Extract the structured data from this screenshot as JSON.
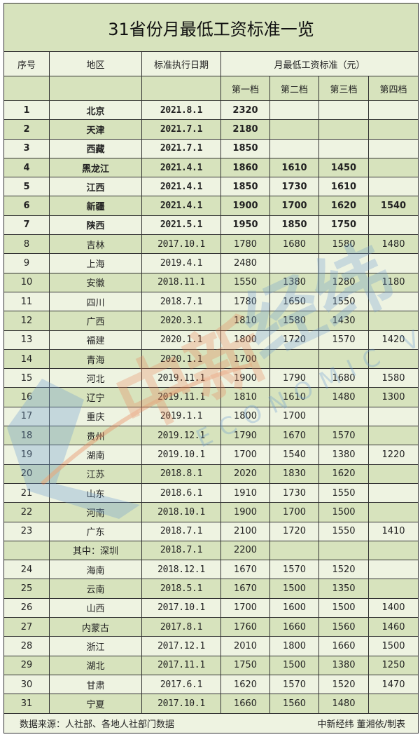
{
  "title": "31省份月最低工资标准一览",
  "headers": {
    "index": "序号",
    "region": "地区",
    "date": "标准执行日期",
    "standard": "月最低工资标准（元）",
    "tiers": [
      "第一档",
      "第二档",
      "第三档",
      "第四档"
    ]
  },
  "rows": [
    {
      "no": "1",
      "region": "北京",
      "date": "2021.8.1",
      "t": [
        "2320",
        "",
        "",
        ""
      ],
      "bold": true
    },
    {
      "no": "2",
      "region": "天津",
      "date": "2021.7.1",
      "t": [
        "2180",
        "",
        "",
        ""
      ],
      "bold": true
    },
    {
      "no": "3",
      "region": "西藏",
      "date": "2021.7.1",
      "t": [
        "1850",
        "",
        "",
        ""
      ],
      "bold": true
    },
    {
      "no": "4",
      "region": "黑龙江",
      "date": "2021.4.1",
      "t": [
        "1860",
        "1610",
        "1450",
        ""
      ],
      "bold": true
    },
    {
      "no": "5",
      "region": "江西",
      "date": "2021.4.1",
      "t": [
        "1850",
        "1730",
        "1610",
        ""
      ],
      "bold": true
    },
    {
      "no": "6",
      "region": "新疆",
      "date": "2021.4.1",
      "t": [
        "1900",
        "1700",
        "1620",
        "1540"
      ],
      "bold": true
    },
    {
      "no": "7",
      "region": "陕西",
      "date": "2021.5.1",
      "t": [
        "1950",
        "1850",
        "1750",
        ""
      ],
      "bold": true
    },
    {
      "no": "8",
      "region": "吉林",
      "date": "2017.10.1",
      "t": [
        "1780",
        "1680",
        "1580",
        "1480"
      ]
    },
    {
      "no": "9",
      "region": "上海",
      "date": "2019.4.1",
      "t": [
        "2480",
        "",
        "",
        ""
      ]
    },
    {
      "no": "10",
      "region": "安徽",
      "date": "2018.11.1",
      "t": [
        "1550",
        "1380",
        "1280",
        "1180"
      ]
    },
    {
      "no": "11",
      "region": "四川",
      "date": "2018.7.1",
      "t": [
        "1780",
        "1650",
        "1550",
        ""
      ]
    },
    {
      "no": "12",
      "region": "广西",
      "date": "2020.3.1",
      "t": [
        "1810",
        "1580",
        "1430",
        ""
      ]
    },
    {
      "no": "13",
      "region": "福建",
      "date": "2020.1.1",
      "t": [
        "1800",
        "1720",
        "1570",
        "1420"
      ]
    },
    {
      "no": "14",
      "region": "青海",
      "date": "2020.1.1",
      "t": [
        "1700",
        "",
        "",
        ""
      ]
    },
    {
      "no": "15",
      "region": "河北",
      "date": "2019.11.1",
      "t": [
        "1900",
        "1790",
        "1680",
        "1580"
      ]
    },
    {
      "no": "16",
      "region": "辽宁",
      "date": "2019.11.1",
      "t": [
        "1810",
        "1610",
        "1480",
        "1300"
      ]
    },
    {
      "no": "17",
      "region": "重庆",
      "date": "2019.1.1",
      "t": [
        "1800",
        "1700",
        "",
        ""
      ]
    },
    {
      "no": "18",
      "region": "贵州",
      "date": "2019.12.1",
      "t": [
        "1790",
        "1670",
        "1570",
        ""
      ]
    },
    {
      "no": "19",
      "region": "湖南",
      "date": "2019.10.1",
      "t": [
        "1700",
        "1540",
        "1380",
        "1220"
      ]
    },
    {
      "no": "20",
      "region": "江苏",
      "date": "2018.8.1",
      "t": [
        "2020",
        "1830",
        "1620",
        ""
      ]
    },
    {
      "no": "21",
      "region": "山东",
      "date": "2018.6.1",
      "t": [
        "1910",
        "1730",
        "1550",
        ""
      ]
    },
    {
      "no": "22",
      "region": "河南",
      "date": "2018.10.1",
      "t": [
        "1900",
        "1700",
        "1500",
        ""
      ]
    },
    {
      "no": "23",
      "region": "广东",
      "date": "2018.7.1",
      "t": [
        "2100",
        "1720",
        "1550",
        "1410"
      ]
    },
    {
      "no": "",
      "region": "其中：深圳",
      "date": "2018.7.1",
      "t": [
        "2200",
        "",
        "",
        ""
      ]
    },
    {
      "no": "24",
      "region": "海南",
      "date": "2018.12.1",
      "t": [
        "1670",
        "1570",
        "1520",
        ""
      ]
    },
    {
      "no": "25",
      "region": "云南",
      "date": "2018.5.1",
      "t": [
        "1670",
        "1500",
        "1350",
        ""
      ]
    },
    {
      "no": "26",
      "region": "山西",
      "date": "2017.10.1",
      "t": [
        "1700",
        "1600",
        "1500",
        "1400"
      ]
    },
    {
      "no": "27",
      "region": "内蒙古",
      "date": "2017.8.1",
      "t": [
        "1760",
        "1660",
        "1560",
        "1460"
      ]
    },
    {
      "no": "28",
      "region": "浙江",
      "date": "2017.12.1",
      "t": [
        "2010",
        "1800",
        "1660",
        "1500"
      ]
    },
    {
      "no": "29",
      "region": "湖北",
      "date": "2017.11.1",
      "t": [
        "1750",
        "1500",
        "1380",
        "1250"
      ]
    },
    {
      "no": "30",
      "region": "甘肃",
      "date": "2017.6.1",
      "t": [
        "1620",
        "1570",
        "1520",
        "1470"
      ]
    },
    {
      "no": "31",
      "region": "宁夏",
      "date": "2017.10.1",
      "t": [
        "1660",
        "1560",
        "1480",
        ""
      ]
    }
  ],
  "footer": {
    "source": "数据来源：人社部、各地人社部门数据",
    "credit": "中新经纬  董湘依/制表"
  },
  "watermark": {
    "text_cn": "中新经纬",
    "text_en": "ECONOMIC VIEW"
  },
  "colors": {
    "title_bg": "#d7e3bd",
    "row_light": "#eef3e1",
    "row_dark": "#d7e3bd"
  }
}
